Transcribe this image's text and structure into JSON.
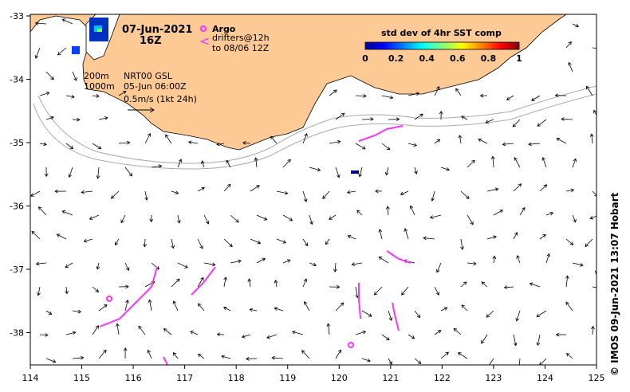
{
  "map": {
    "date_title": "07-Jun-2021",
    "time_title": "16Z",
    "argo_label": "Argo",
    "drifter_symbol": "<",
    "drifter_label_1": "drifters@12h",
    "drifter_label_2": "to 08/06 12Z",
    "depth_200": "200m",
    "depth_1000": "1000m",
    "product_line_1": "NRT00 GSL",
    "product_line_2": "05-Jun 06:00Z",
    "scale_label": "0.5m/s (1kt 24h)",
    "credit": "© IMOS 09-Jun-2021 13:07 Hobart",
    "colorbar": {
      "title": "std dev of 4hr SST comp",
      "ticks": [
        "0",
        "0.2",
        "0.4",
        "0.6",
        "0.8",
        "1"
      ]
    },
    "x_ticks": [
      "114",
      "115",
      "116",
      "117",
      "118",
      "119",
      "120",
      "121",
      "122",
      "123",
      "124",
      "125"
    ],
    "y_ticks": [
      "-33",
      "-34",
      "-35",
      "-36",
      "-37",
      "-38"
    ],
    "colors": {
      "land": "#fdc994",
      "argo_drifter": "#ff33ff",
      "isobath": "#aaaaaa",
      "sst_low": "#00008f",
      "sst_high": "#800000"
    }
  }
}
